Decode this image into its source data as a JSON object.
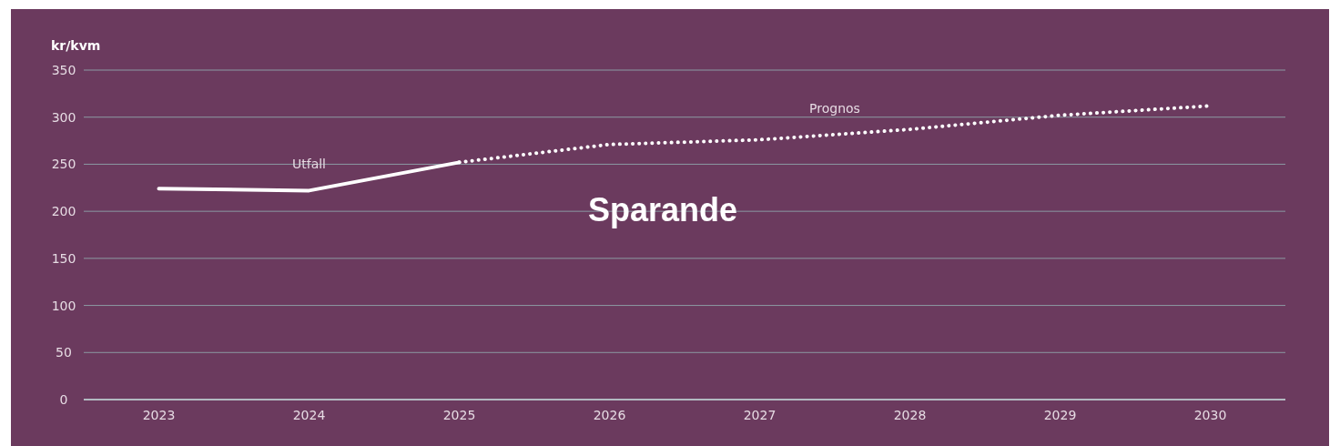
{
  "chart_data": {
    "type": "line",
    "title": "Sparande",
    "ylabel": "kr/kvm",
    "categories": [
      "2023",
      "2024",
      "2025",
      "2026",
      "2027",
      "2028",
      "2029",
      "2030"
    ],
    "series": [
      {
        "name": "Utfall",
        "color": "#ffffff",
        "line_style": "solid",
        "values": [
          224,
          222,
          252,
          null,
          null,
          null,
          null,
          null
        ]
      },
      {
        "name": "Prognos",
        "color": "#ffffff",
        "line_style": "dotted",
        "values": [
          null,
          null,
          252,
          271,
          276,
          287,
          302,
          312
        ]
      }
    ],
    "ylim": [
      0,
      350
    ],
    "yticks": [
      0,
      50,
      100,
      150,
      200,
      250,
      300,
      350
    ],
    "grid": "y"
  }
}
